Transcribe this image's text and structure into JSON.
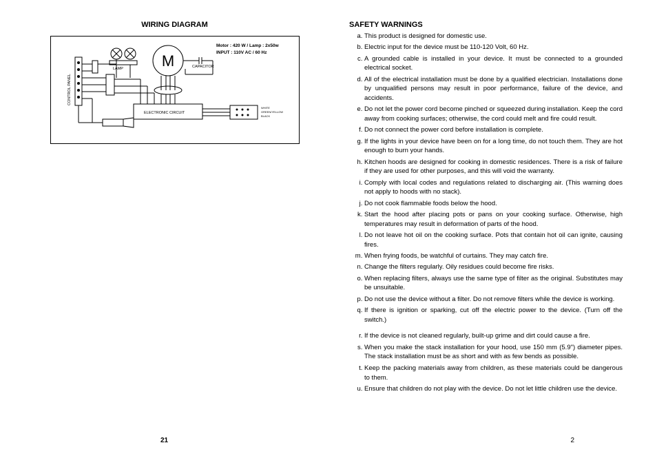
{
  "left": {
    "title": "WIRING DIAGRAM",
    "page_number": "21",
    "diagram": {
      "motor_label": "M",
      "spec_line1": "Motor : 420 W / Lamp : 2x50w",
      "spec_line2": "INPUT : 110V AC  / 60 Hz",
      "control_panel_label": "CONTROL PANEL",
      "lamp_label": "LAMP",
      "capacitor_label": "CAPACITOR",
      "electronic_circuit_label": "ELECTRONIC  CIRCUIT",
      "wire_labels": [
        "WHITE",
        "GREEN/YELLOW",
        "BLACK"
      ]
    }
  },
  "right": {
    "title": "SAFETY WARNINGS",
    "page_number": "2",
    "items": [
      "This product is designed for domestic use.",
      "Electric input for the device must be 110-120 Volt, 60 Hz.",
      "A grounded cable is installed in your device.  It must be connected to a grounded electrical socket.",
      "All of the electrical installation must be done by a qualified electrician.  Installations done by unqualified persons may result in poor performance, failure of the device, and accidents.",
      "Do not let the power cord become pinched or squeezed during installation.  Keep the cord away from cooking surfaces; otherwise, the cord could melt and fire could result.",
      "Do not connect the power cord before installation is complete.",
      "If the lights in your device have been on for a long time, do not touch them.  They are hot enough to burn your hands.",
      "Kitchen hoods are designed for cooking in domestic residences.  There is a risk of failure if they are used for other purposes, and this will void the warranty.",
      "Comply with local codes and regulations related to discharging air.  (This warning does not apply to hoods with no stack).",
      "Do not cook flammable foods below the hood.",
      "Start the hood after placing pots or pans on your cooking surface.  Otherwise, high temperatures may result in deformation of parts of the hood.",
      "Do not leave hot oil on the cooking surface.  Pots that contain hot oil can ignite, causing fires.",
      "When frying foods, be watchful of curtains.  They may catch fire.",
      "Change the filters regularly.  Oily residues could become fire risks.",
      "When replacing filters, always use the same type of filter as the original.  Substitutes may be unsuitable.",
      "Do not use the device without a filter. Do not remove filters while the device is working.",
      "If there is ignition or sparking, cut off the electric power to the device.  (Turn off the switch.)",
      "If the device is not cleaned regularly, built-up grime and dirt could cause a fire.",
      "When you make the stack installation for your hood, use 150 mm (5.9\") diameter pipes.  The stack installation must be as short and with as few bends as possible.",
      "Keep the packing materials away from children, as these materials could be dangerous to them.",
      "Ensure that children do not play with the device.  Do not let little children use the device."
    ],
    "gap_after_index": 16
  }
}
